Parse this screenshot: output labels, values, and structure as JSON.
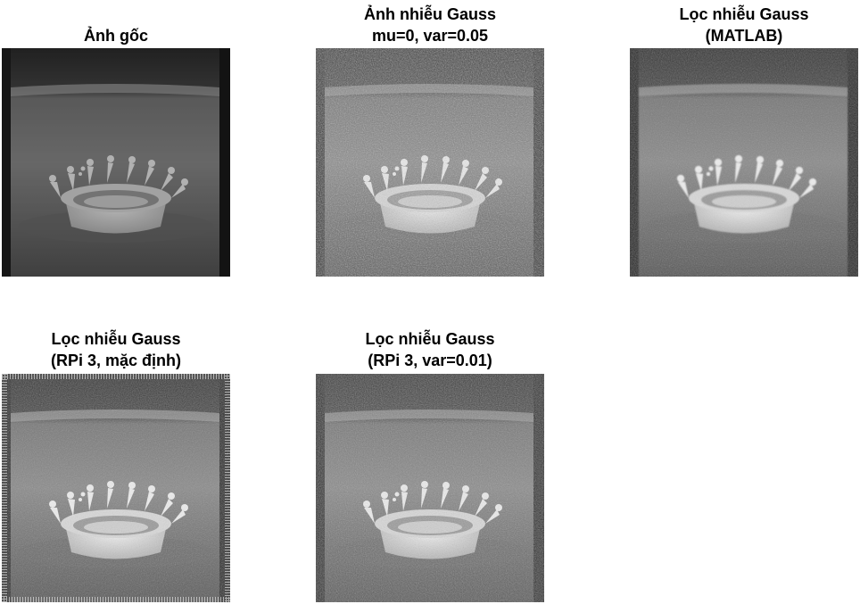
{
  "panels": [
    {
      "id": "original",
      "title_lines": [
        "Ảnh gốc"
      ],
      "noise": 0,
      "filter": "none"
    },
    {
      "id": "noisy",
      "title_lines": [
        "Ảnh nhiễu Gauss",
        "mu=0, var=0.05"
      ],
      "noise": 0.55,
      "filter": "none"
    },
    {
      "id": "filtered-matlab",
      "title_lines": [
        "Lọc nhiễu Gauss",
        "(MATLAB)"
      ],
      "noise": 0.25,
      "filter": "blur"
    },
    {
      "id": "filtered-rpi-default",
      "title_lines": [
        "Lọc nhiễu Gauss",
        "(RPi 3, mặc định)"
      ],
      "noise": 0.3,
      "filter": "border-noise"
    },
    {
      "id": "filtered-rpi-var",
      "title_lines": [
        "Lọc nhiễu Gauss",
        "(RPi 3, var=0.01)"
      ],
      "noise": 0.4,
      "filter": "none"
    }
  ]
}
